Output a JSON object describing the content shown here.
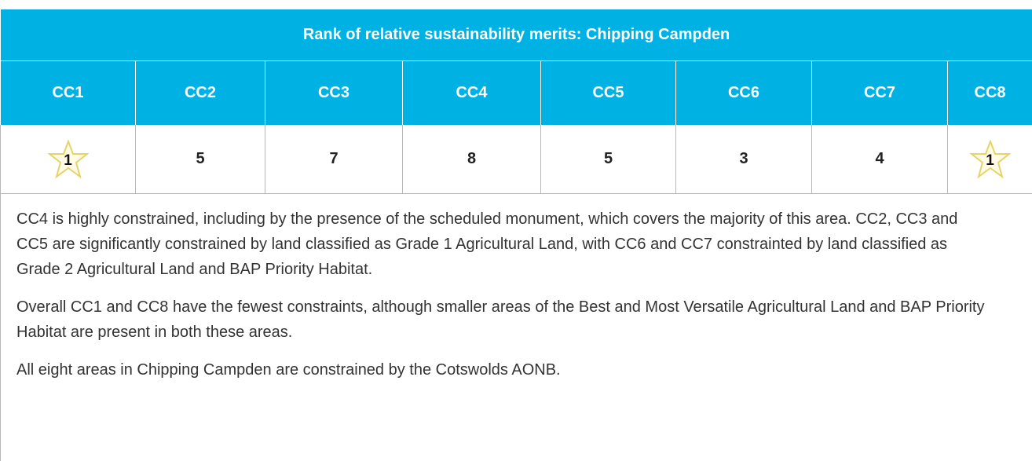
{
  "table": {
    "title": "Rank of relative sustainability merits: Chipping Campden",
    "columns": [
      "CC1",
      "CC2",
      "CC3",
      "CC4",
      "CC5",
      "CC6",
      "CC7",
      "CC8"
    ],
    "ranks": [
      1,
      5,
      7,
      8,
      5,
      3,
      4,
      1
    ]
  },
  "notes": [
    "CC4 is highly constrained, including by the presence of the scheduled monument, which covers the majority of this area. CC2, CC3 and CC5 are significantly constrained by land classified as Grade 1 Agricultural Land, with CC6 and CC7 constrainted by land classified as Grade 2 Agricultural Land and BAP Priority Habitat.",
    "Overall CC1 and CC8 have the fewest constraints, although smaller areas of the Best and Most Versatile Agricultural Land and BAP Priority Habitat are present in both these areas.",
    "All eight areas in Chipping Campden are constrained by the Cotswolds AONB."
  ]
}
